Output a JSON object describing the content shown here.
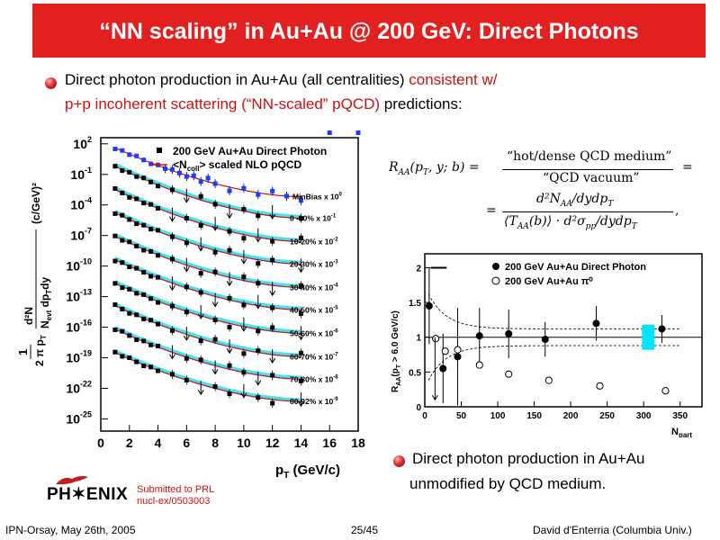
{
  "slide": {
    "title": "“NN scaling” in Au+Au @ 200 GeV: Direct Photons",
    "bullet1_line1_a": "Direct photon production in Au+Au (all centralities) ",
    "bullet1_line1_b": "consistent w/",
    "bullet1_line2_a": "p+p incoherent scattering (“NN-scaled” pQCD)",
    "bullet1_line2_b": " predictions:",
    "bullet2_line1": "Direct photon production in Au+Au",
    "bullet2_line2": "unmodified by QCD medium.",
    "submitted_line1": "Submitted to PRL",
    "submitted_line2": "nucl-ex/0503003",
    "logo_text": "PH✶ENIX"
  },
  "formula": {
    "lhs": "R_AA(p_T, y; b) =",
    "num1": "“hot/dense QCD medium”",
    "den1": "“QCD vacuum”",
    "eq2": "=",
    "num2": "d²N_AA/dydp_T",
    "den2": "⟨T_AA(b)⟩ · d²σ_pp/dydp_T",
    "tail": ","
  },
  "footer": {
    "left": "IPN-Orsay, May 26th, 2005",
    "center": "25/45",
    "right": "David d'Enterria (Columbia Univ.)"
  },
  "colors": {
    "title_bg": "#e32020",
    "highlight": "#d01010",
    "blue_points": "#1a3cff",
    "cyan_band": "#00e5ff"
  },
  "chart_data": [
    {
      "type": "scatter",
      "title": "",
      "xlabel": "p_T (GeV/c)",
      "ylabel": "1/(2π p_T N_evt) d²N/dp_T dy (c/GeV)²",
      "xlim": [
        0,
        18
      ],
      "x_ticks": [
        0,
        2,
        4,
        6,
        8,
        10,
        12,
        14,
        16,
        18
      ],
      "y_scale": "log",
      "y_tick_exponents": [
        2,
        -1,
        -4,
        -7,
        -10,
        -13,
        -16,
        -19,
        -22,
        -25
      ],
      "legend": [
        {
          "name": "200 GeV Au+Au Direct Photon",
          "marker": "filled-square"
        },
        {
          "name": "<N_coll> scaled NLO pQCD",
          "marker": "red-line"
        }
      ],
      "legend_position": "top-right",
      "series_labels": [
        "MinBias x 10^0",
        "0 -10%  x 10^-1",
        "10-20% x 10^-2",
        "20-30% x 10^-3",
        "30-40% x 10^-4",
        "40-50% x 10^-5",
        "50-60% x 10^-6",
        "60-70% x 10^-7",
        "70-80% x 10^-8",
        "80-92% x 10^-9"
      ],
      "series_label_texts": [
        {
          "base": "MinBias x 10",
          "exp": "0"
        },
        {
          "base": "0 -10%  x 10",
          "exp": "-1"
        },
        {
          "base": "10-20% x 10",
          "exp": "-2"
        },
        {
          "base": "20-30% x 10",
          "exp": "-3"
        },
        {
          "base": "30-40% x 10",
          "exp": "-4"
        },
        {
          "base": "40-50% x 10",
          "exp": "-5"
        },
        {
          "base": "50-60% x 10",
          "exp": "-6"
        },
        {
          "base": "60-70% x 10",
          "exp": "-7"
        },
        {
          "base": "70-80% x 10",
          "exp": "-8"
        },
        {
          "base": "80-92% x 10",
          "exp": "-9"
        }
      ],
      "series_exponent_at_14gev": [
        -3.2,
        -5.3,
        -7.6,
        -9.8,
        -12.1,
        -14.3,
        -16.6,
        -18.9,
        -21.1,
        -23.3
      ],
      "series_exponent_at_1gev": [
        1.6,
        -0.2,
        -2.5,
        -4.8,
        -7.1,
        -9.4,
        -11.7,
        -13.9,
        -16.2,
        -18.5
      ]
    },
    {
      "type": "scatter",
      "title": "",
      "xlabel": "N_part",
      "ylabel": "R_AA(p_T > 6.0 GeV/c)",
      "xlim": [
        0,
        380
      ],
      "ylim": [
        0,
        2.2
      ],
      "x_ticks": [
        0,
        50,
        100,
        150,
        200,
        250,
        300,
        350
      ],
      "y_ticks": [
        0,
        0.5,
        1,
        1.5,
        2
      ],
      "legend": [
        {
          "name": "200 GeV Au+Au Direct Photon",
          "marker": "filled-circle"
        },
        {
          "name": "200 GeV Au+Au π⁰",
          "marker": "open-circle"
        }
      ],
      "legend_position": "top-right",
      "series": [
        {
          "name": "200 GeV Au+Au Direct Photon",
          "points": [
            {
              "x": 6,
              "y": 1.45,
              "err": 0.55
            },
            {
              "x": 25,
              "y": 0.55,
              "err": 0.5
            },
            {
              "x": 45,
              "y": 0.72,
              "err": 0.7
            },
            {
              "x": 75,
              "y": 1.02,
              "err": 0.4
            },
            {
              "x": 115,
              "y": 1.05,
              "err": 0.35
            },
            {
              "x": 165,
              "y": 0.97,
              "err": 0.25
            },
            {
              "x": 235,
              "y": 1.2,
              "err": 0.25
            },
            {
              "x": 325,
              "y": 1.12,
              "err": 0.2
            }
          ]
        },
        {
          "name": "200 GeV Au+Au π⁰",
          "points": [
            {
              "x": 15,
              "y": 0.98
            },
            {
              "x": 28,
              "y": 0.8
            },
            {
              "x": 45,
              "y": 0.82
            },
            {
              "x": 75,
              "y": 0.6
            },
            {
              "x": 115,
              "y": 0.47
            },
            {
              "x": 170,
              "y": 0.38
            },
            {
              "x": 240,
              "y": 0.3
            },
            {
              "x": 330,
              "y": 0.23
            }
          ]
        }
      ]
    }
  ]
}
